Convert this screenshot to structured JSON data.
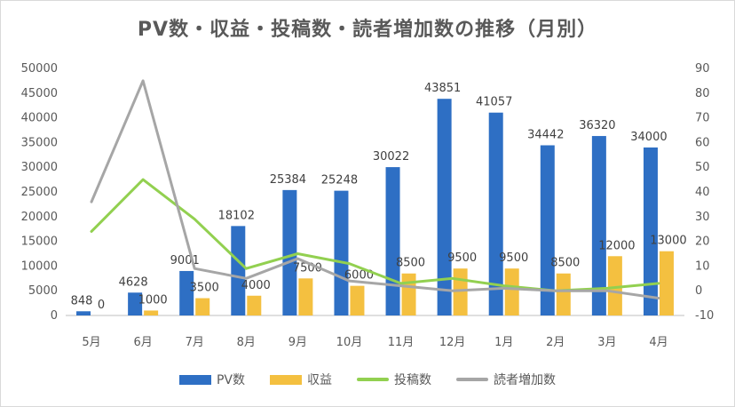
{
  "chart_data": {
    "type": "bar",
    "title": "PV数・収益・投稿数・読者増加数の推移（月別）",
    "categories": [
      "5月",
      "6月",
      "7月",
      "8月",
      "9月",
      "10月",
      "11月",
      "12月",
      "1月",
      "2月",
      "3月",
      "4月"
    ],
    "series": [
      {
        "name": "PV数",
        "type": "bar",
        "axis": "left",
        "color": "#2e6fc4",
        "values": [
          848,
          4628,
          9001,
          18102,
          25384,
          25248,
          30022,
          43851,
          41057,
          34442,
          36320,
          34000
        ],
        "labels": [
          "848",
          "4628",
          "9001",
          "18102",
          "25384",
          "25248",
          "30022",
          "43851",
          "41057",
          "34442",
          "36320",
          "34000"
        ]
      },
      {
        "name": "収益",
        "type": "bar",
        "axis": "left",
        "color": "#f4c040",
        "values": [
          0,
          1000,
          3500,
          4000,
          7500,
          6000,
          8500,
          9500,
          9500,
          8500,
          12000,
          13000
        ],
        "labels": [
          "0",
          "1000",
          "3500",
          "4000",
          "7500",
          "6000",
          "8500",
          "9500",
          "9500",
          "8500",
          "12000",
          "13000"
        ]
      },
      {
        "name": "投稿数",
        "type": "line",
        "axis": "right",
        "color": "#92d050",
        "values": [
          24,
          45,
          29,
          9,
          15,
          11,
          3,
          5,
          2,
          0,
          1,
          3
        ]
      },
      {
        "name": "読者増加数",
        "type": "line",
        "axis": "right",
        "color": "#a6a6a6",
        "values": [
          36,
          85,
          9,
          5,
          13,
          4,
          2,
          0,
          1,
          0,
          0,
          -3
        ]
      }
    ],
    "left_axis": {
      "min": 0,
      "max": 50000,
      "step": 5000,
      "ticks": [
        "0",
        "5000",
        "10000",
        "15000",
        "20000",
        "25000",
        "30000",
        "35000",
        "40000",
        "45000",
        "50000"
      ]
    },
    "right_axis": {
      "min": -10,
      "max": 90,
      "step": 10,
      "ticks": [
        "-10",
        "0",
        "10",
        "20",
        "30",
        "40",
        "50",
        "60",
        "70",
        "80",
        "90"
      ]
    },
    "grid": false,
    "legend_position": "bottom"
  }
}
